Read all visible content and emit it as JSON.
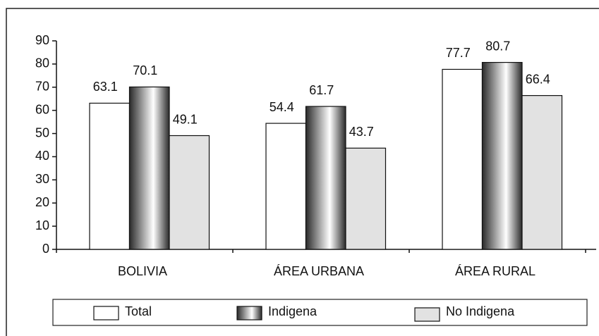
{
  "chart_data": {
    "type": "bar",
    "categories": [
      "BOLIVIA",
      "ÁREA URBANA",
      "ÁREA RURAL"
    ],
    "series": [
      {
        "name": "Total",
        "color": "#ffffff",
        "values": [
          63.1,
          54.4,
          77.7
        ]
      },
      {
        "name": "Indigena",
        "color": "#2a2a2a",
        "values": [
          70.1,
          61.7,
          80.7
        ]
      },
      {
        "name": "No Indigena",
        "color": "#e2e2e2",
        "values": [
          49.1,
          43.7,
          66.4
        ]
      }
    ],
    "ylim": [
      0,
      90
    ],
    "yticks": [
      0,
      10,
      20,
      30,
      40,
      50,
      60,
      70,
      80,
      90
    ],
    "grid": false
  }
}
